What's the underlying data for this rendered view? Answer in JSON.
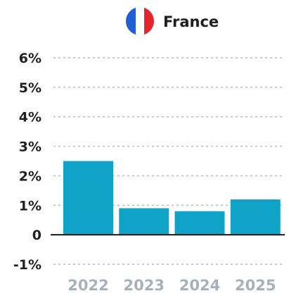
{
  "header": {
    "country": "France",
    "flag_icon": "france-flag-icon",
    "flag_colors": [
      "#1f5fd1",
      "#ffffff",
      "#e3262c"
    ]
  },
  "chart_data": {
    "type": "bar",
    "categories": [
      "2022",
      "2023",
      "2024",
      "2025"
    ],
    "values": [
      2.5,
      0.9,
      0.8,
      1.2
    ],
    "ylim": [
      -1,
      6
    ],
    "yticks": [
      6,
      5,
      4,
      3,
      2,
      1,
      0,
      -1
    ],
    "ytick_labels": [
      "6%",
      "5%",
      "4%",
      "3%",
      "2%",
      "1%",
      "0",
      "-1%"
    ],
    "grid": true,
    "bar_color": "#10a3c8",
    "title": "",
    "xlabel": "",
    "ylabel": ""
  }
}
